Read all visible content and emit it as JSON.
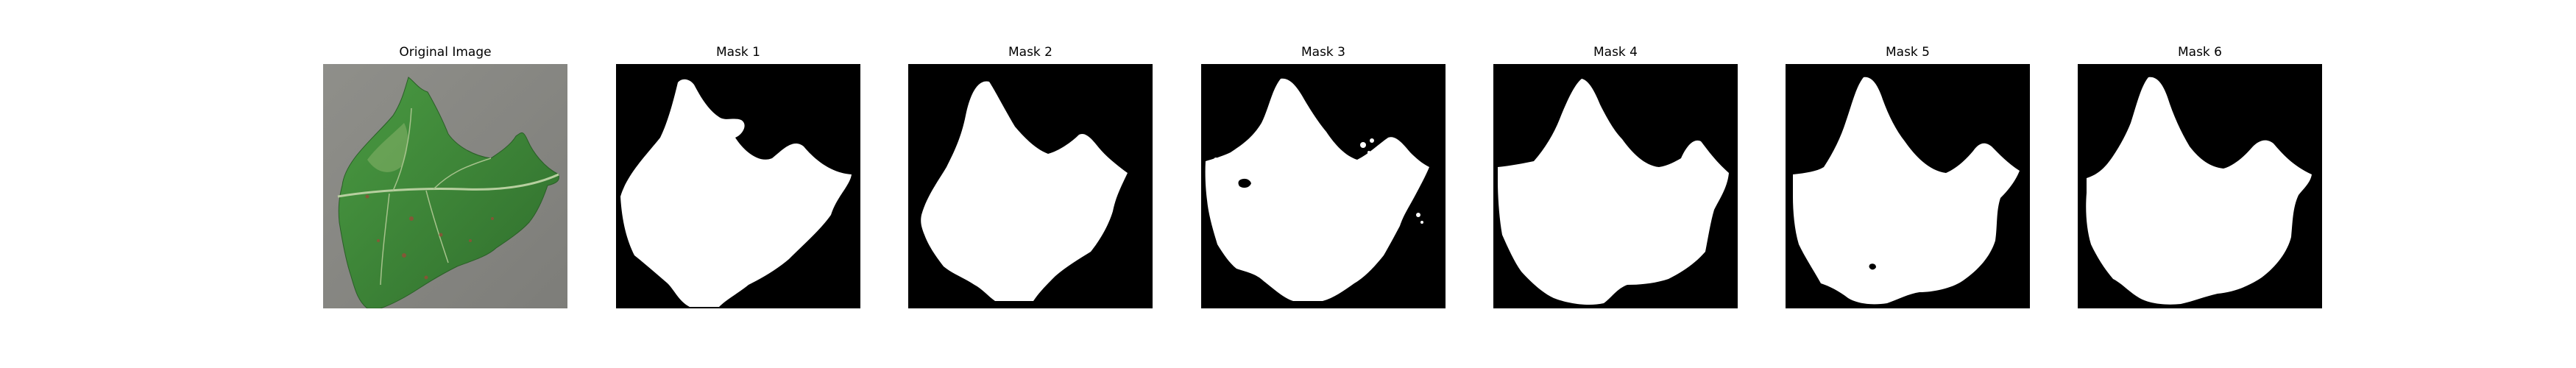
{
  "figure": {
    "panels": [
      {
        "title": "Original Image",
        "kind": "photo",
        "subject": "leaf-photo"
      },
      {
        "title": "Mask 1",
        "kind": "mask",
        "variant": 1
      },
      {
        "title": "Mask 2",
        "kind": "mask",
        "variant": 2
      },
      {
        "title": "Mask 3",
        "kind": "mask",
        "variant": 3
      },
      {
        "title": "Mask 4",
        "kind": "mask",
        "variant": 4
      },
      {
        "title": "Mask 5",
        "kind": "mask",
        "variant": 5
      },
      {
        "title": "Mask 6",
        "kind": "mask",
        "variant": 6
      }
    ]
  },
  "colors": {
    "photo_background": "#8a8a85",
    "leaf_green": "#3f8a3a",
    "leaf_dark": "#2f6d2c",
    "leaf_light": "#86b36a",
    "leaf_vein": "#b7cf9f",
    "leaf_spot": "#9b4a36",
    "mask_background": "#000000",
    "mask_foreground": "#ffffff"
  }
}
